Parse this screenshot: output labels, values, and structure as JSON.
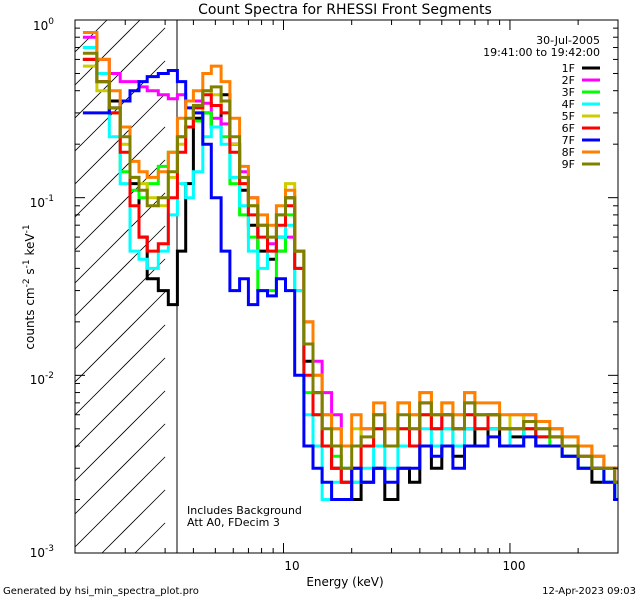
{
  "chart_data": {
    "type": "line",
    "title": "Count Spectra for RHESSI Front Segments",
    "xlabel": "Energy (keV)",
    "ylabel_main": "counts cm",
    "ylabel_exp1": "-2",
    "ylabel_mid": " s",
    "ylabel_exp2": "-1",
    "ylabel_end": " keV",
    "ylabel_exp3": "-1",
    "x_scale": "log",
    "y_scale": "log",
    "xlim": [
      1.2,
      300
    ],
    "ylim": [
      0.001,
      1.0
    ],
    "x_tick_labels": [
      {
        "value": 10,
        "label": "10"
      },
      {
        "value": 100,
        "label": "100"
      }
    ],
    "y_tick_labels": [
      {
        "value": 1,
        "base": "10",
        "exp": "0"
      },
      {
        "value": 0.1,
        "base": "10",
        "exp": "-1"
      },
      {
        "value": 0.01,
        "base": "10",
        "exp": "-2"
      },
      {
        "value": 0.001,
        "base": "10",
        "exp": "-3"
      }
    ],
    "excluded_region": {
      "from": 1.2,
      "to": 3.0,
      "style": "hatched"
    },
    "date": "30-Jul-2005",
    "time_range": "19:41:00 to 19:42:00",
    "annotations": [
      "Includes Background",
      "Att A0, FDecim 3"
    ],
    "series": [
      {
        "name": "1F",
        "color": "#000000",
        "x": [
          1.3,
          1.5,
          1.7,
          1.9,
          2.1,
          2.3,
          2.5,
          2.8,
          3.1,
          3.4,
          3.7,
          4.0,
          4.4,
          4.8,
          5.3,
          5.8,
          6.4,
          7.0,
          7.7,
          8.5,
          9.3,
          10.2,
          11.2,
          12.3,
          13.5,
          14.8,
          16.3,
          18,
          20,
          22,
          25,
          28,
          32,
          36,
          40,
          45,
          50,
          56,
          63,
          70,
          80,
          90,
          100,
          115,
          130,
          150,
          170,
          200,
          230,
          260,
          290
        ],
        "y": [
          0.6,
          0.45,
          0.35,
          0.25,
          0.12,
          0.06,
          0.035,
          0.03,
          0.025,
          0.05,
          0.12,
          0.28,
          0.3,
          0.25,
          0.38,
          0.2,
          0.11,
          0.07,
          0.05,
          0.045,
          0.06,
          0.1,
          0.05,
          0.012,
          0.008,
          0.004,
          0.003,
          0.0025,
          0.002,
          0.0025,
          0.003,
          0.002,
          0.003,
          0.0025,
          0.004,
          0.003,
          0.004,
          0.0035,
          0.005,
          0.004,
          0.005,
          0.004,
          0.0045,
          0.005,
          0.004,
          0.004,
          0.0035,
          0.003,
          0.0025,
          0.0025,
          0.002
        ]
      },
      {
        "name": "2F",
        "color": "#ff00ff",
        "x": [
          1.3,
          1.5,
          1.7,
          1.9,
          2.1,
          2.3,
          2.5,
          2.8,
          3.1,
          3.4,
          3.7,
          4.0,
          4.4,
          4.8,
          5.3,
          5.8,
          6.4,
          7.0,
          7.7,
          8.5,
          9.3,
          10.2,
          11.2,
          12.3,
          13.5,
          14.8,
          16.3,
          18,
          20,
          22,
          25,
          28,
          32,
          36,
          40,
          45,
          50,
          56,
          63,
          70,
          80,
          90,
          100,
          115,
          130,
          150,
          170,
          200,
          230,
          260,
          290
        ],
        "y": [
          0.8,
          0.6,
          0.5,
          0.45,
          0.45,
          0.42,
          0.4,
          0.38,
          0.36,
          0.38,
          0.35,
          0.35,
          0.34,
          0.28,
          0.26,
          0.2,
          0.14,
          0.1,
          0.07,
          0.055,
          0.05,
          0.06,
          0.04,
          0.02,
          0.012,
          0.008,
          0.006,
          0.004,
          0.004,
          0.005,
          0.006,
          0.004,
          0.004,
          0.005,
          0.007,
          0.005,
          0.006,
          0.005,
          0.007,
          0.006,
          0.006,
          0.005,
          0.005,
          0.006,
          0.005,
          0.005,
          0.004,
          0.004,
          0.0035,
          0.003,
          0.003
        ]
      },
      {
        "name": "3F",
        "color": "#00ff00",
        "x": [
          1.3,
          1.5,
          1.7,
          1.9,
          2.1,
          2.3,
          2.5,
          2.8,
          3.1,
          3.4,
          3.7,
          4.0,
          4.4,
          4.8,
          5.3,
          5.8,
          6.4,
          7.0,
          7.7,
          8.5,
          9.3,
          10.2,
          11.2,
          12.3,
          13.5,
          14.8,
          16.3,
          18,
          20,
          22,
          25,
          28,
          32,
          36,
          40,
          45,
          50,
          56,
          63,
          70,
          80,
          90,
          100,
          115,
          130,
          150,
          170,
          200,
          230,
          260,
          290
        ],
        "y": [
          0.7,
          0.5,
          0.3,
          0.14,
          0.11,
          0.1,
          0.12,
          0.15,
          0.18,
          0.22,
          0.25,
          0.27,
          0.3,
          0.25,
          0.22,
          0.12,
          0.08,
          0.06,
          0.03,
          0.03,
          0.05,
          0.08,
          0.03,
          0.008,
          0.006,
          0.004,
          0.0035,
          0.003,
          0.0025,
          0.004,
          0.005,
          0.004,
          0.005,
          0.004,
          0.006,
          0.005,
          0.005,
          0.004,
          0.006,
          0.005,
          0.006,
          0.005,
          0.004,
          0.005,
          0.0045,
          0.004,
          0.0035,
          0.003,
          0.003,
          0.0025,
          0.002
        ]
      },
      {
        "name": "4F",
        "color": "#00ffff",
        "x": [
          1.3,
          1.5,
          1.7,
          1.9,
          2.1,
          2.3,
          2.5,
          2.8,
          3.1,
          3.4,
          3.7,
          4.0,
          4.4,
          4.8,
          5.3,
          5.8,
          6.4,
          7.0,
          7.7,
          8.5,
          9.3,
          10.2,
          11.2,
          12.3,
          13.5,
          14.8,
          16.3,
          18,
          20,
          22,
          25,
          28,
          32,
          36,
          40,
          45,
          50,
          56,
          63,
          70,
          80,
          90,
          100,
          115,
          130,
          150,
          170,
          200,
          230,
          260,
          290
        ],
        "y": [
          0.7,
          0.5,
          0.22,
          0.12,
          0.05,
          0.045,
          0.04,
          0.05,
          0.08,
          0.12,
          0.1,
          0.14,
          0.22,
          0.25,
          0.2,
          0.13,
          0.09,
          0.05,
          0.04,
          0.05,
          0.06,
          0.07,
          0.03,
          0.006,
          0.004,
          0.002,
          0.0025,
          0.003,
          0.0025,
          0.003,
          0.004,
          0.003,
          0.004,
          0.004,
          0.005,
          0.004,
          0.005,
          0.004,
          0.005,
          0.006,
          0.005,
          0.005,
          0.004,
          0.005,
          0.0045,
          0.0045,
          0.004,
          0.0035,
          0.003,
          0.0025,
          0.002
        ]
      },
      {
        "name": "5F",
        "color": "#cccc00",
        "x": [
          1.3,
          1.5,
          1.7,
          1.9,
          2.1,
          2.3,
          2.5,
          2.8,
          3.1,
          3.4,
          3.7,
          4.0,
          4.4,
          4.8,
          5.3,
          5.8,
          6.4,
          7.0,
          7.7,
          8.5,
          9.3,
          10.2,
          11.2,
          12.3,
          13.5,
          14.8,
          16.3,
          18,
          20,
          22,
          25,
          28,
          32,
          36,
          40,
          45,
          50,
          56,
          63,
          70,
          80,
          90,
          100,
          115,
          130,
          150,
          170,
          200,
          230,
          260,
          290
        ],
        "y": [
          0.55,
          0.4,
          0.3,
          0.2,
          0.13,
          0.12,
          0.1,
          0.09,
          0.13,
          0.2,
          0.25,
          0.3,
          0.4,
          0.38,
          0.3,
          0.2,
          0.12,
          0.09,
          0.07,
          0.06,
          0.08,
          0.12,
          0.05,
          0.02,
          0.01,
          0.006,
          0.005,
          0.004,
          0.005,
          0.004,
          0.006,
          0.005,
          0.007,
          0.006,
          0.008,
          0.006,
          0.007,
          0.006,
          0.008,
          0.006,
          0.006,
          0.005,
          0.006,
          0.005,
          0.005,
          0.005,
          0.0045,
          0.004,
          0.0035,
          0.003,
          0.003
        ]
      },
      {
        "name": "6F",
        "color": "#ff0000",
        "x": [
          1.3,
          1.5,
          1.7,
          1.9,
          2.1,
          2.3,
          2.5,
          2.8,
          3.1,
          3.4,
          3.7,
          4.0,
          4.4,
          4.8,
          5.3,
          5.8,
          6.4,
          7.0,
          7.7,
          8.5,
          9.3,
          10.2,
          11.2,
          12.3,
          13.5,
          14.8,
          16.3,
          18,
          20,
          22,
          25,
          28,
          32,
          36,
          40,
          45,
          50,
          56,
          63,
          70,
          80,
          90,
          100,
          115,
          130,
          150,
          170,
          200,
          230,
          260,
          290
        ],
        "y": [
          0.6,
          0.45,
          0.3,
          0.18,
          0.09,
          0.06,
          0.05,
          0.055,
          0.1,
          0.18,
          0.25,
          0.32,
          0.38,
          0.33,
          0.3,
          0.18,
          0.12,
          0.08,
          0.06,
          0.05,
          0.07,
          0.09,
          0.04,
          0.01,
          0.006,
          0.004,
          0.003,
          0.0025,
          0.003,
          0.004,
          0.005,
          0.004,
          0.005,
          0.004,
          0.006,
          0.005,
          0.006,
          0.005,
          0.006,
          0.005,
          0.006,
          0.005,
          0.005,
          0.005,
          0.0045,
          0.0045,
          0.004,
          0.0035,
          0.003,
          0.003,
          0.0025
        ]
      },
      {
        "name": "7F",
        "color": "#0000ff",
        "x": [
          1.3,
          1.5,
          1.7,
          1.9,
          2.1,
          2.3,
          2.5,
          2.8,
          3.1,
          3.4,
          3.7,
          4.0,
          4.4,
          4.8,
          5.3,
          5.8,
          6.4,
          7.0,
          7.7,
          8.5,
          9.3,
          10.2,
          11.2,
          12.3,
          13.5,
          14.8,
          16.3,
          18,
          20,
          22,
          25,
          28,
          32,
          36,
          40,
          45,
          50,
          56,
          63,
          70,
          80,
          90,
          100,
          115,
          130,
          150,
          170,
          200,
          230,
          260,
          290
        ],
        "y": [
          0.3,
          0.3,
          0.32,
          0.35,
          0.4,
          0.45,
          0.48,
          0.5,
          0.52,
          0.45,
          0.32,
          0.3,
          0.2,
          0.1,
          0.05,
          0.03,
          0.035,
          0.025,
          0.03,
          0.028,
          0.035,
          0.03,
          0.01,
          0.004,
          0.003,
          0.0025,
          0.002,
          0.002,
          0.003,
          0.0025,
          0.003,
          0.0025,
          0.003,
          0.003,
          0.004,
          0.0035,
          0.004,
          0.003,
          0.004,
          0.004,
          0.0045,
          0.004,
          0.004,
          0.0045,
          0.004,
          0.004,
          0.0035,
          0.003,
          0.003,
          0.0025,
          0.002
        ]
      },
      {
        "name": "8F",
        "color": "#ff8000",
        "x": [
          1.3,
          1.5,
          1.7,
          1.9,
          2.1,
          2.3,
          2.5,
          2.8,
          3.1,
          3.4,
          3.7,
          4.0,
          4.4,
          4.8,
          5.3,
          5.8,
          6.4,
          7.0,
          7.7,
          8.5,
          9.3,
          10.2,
          11.2,
          12.3,
          13.5,
          14.8,
          16.3,
          18,
          20,
          22,
          25,
          28,
          32,
          36,
          40,
          45,
          50,
          56,
          63,
          70,
          80,
          90,
          100,
          115,
          130,
          150,
          170,
          200,
          230,
          260,
          290
        ],
        "y": [
          0.85,
          0.6,
          0.4,
          0.25,
          0.16,
          0.14,
          0.13,
          0.14,
          0.18,
          0.28,
          0.35,
          0.4,
          0.5,
          0.55,
          0.45,
          0.28,
          0.15,
          0.1,
          0.08,
          0.07,
          0.09,
          0.11,
          0.05,
          0.02,
          0.01,
          0.006,
          0.005,
          0.004,
          0.006,
          0.005,
          0.007,
          0.005,
          0.007,
          0.006,
          0.008,
          0.006,
          0.007,
          0.006,
          0.008,
          0.007,
          0.007,
          0.006,
          0.006,
          0.006,
          0.0055,
          0.005,
          0.0045,
          0.004,
          0.0035,
          0.003,
          0.003
        ]
      },
      {
        "name": "9F",
        "color": "#808000",
        "x": [
          1.3,
          1.5,
          1.7,
          1.9,
          2.1,
          2.3,
          2.5,
          2.8,
          3.1,
          3.4,
          3.7,
          4.0,
          4.4,
          4.8,
          5.3,
          5.8,
          6.4,
          7.0,
          7.7,
          8.5,
          9.3,
          10.2,
          11.2,
          12.3,
          13.5,
          14.8,
          16.3,
          18,
          20,
          22,
          25,
          28,
          32,
          36,
          40,
          45,
          50,
          56,
          63,
          70,
          80,
          90,
          100,
          115,
          130,
          150,
          170,
          200,
          230,
          260,
          290
        ],
        "y": [
          0.65,
          0.45,
          0.32,
          0.22,
          0.13,
          0.11,
          0.09,
          0.1,
          0.14,
          0.22,
          0.28,
          0.33,
          0.4,
          0.42,
          0.35,
          0.22,
          0.13,
          0.09,
          0.07,
          0.06,
          0.08,
          0.1,
          0.05,
          0.015,
          0.008,
          0.005,
          0.004,
          0.003,
          0.004,
          0.0045,
          0.006,
          0.004,
          0.006,
          0.005,
          0.007,
          0.006,
          0.006,
          0.005,
          0.007,
          0.006,
          0.006,
          0.005,
          0.005,
          0.0055,
          0.005,
          0.0045,
          0.004,
          0.0035,
          0.003,
          0.003,
          0.0025
        ]
      }
    ]
  },
  "footer": {
    "generated_by": "Generated by hsi_min_spectra_plot.pro",
    "timestamp": "12-Apr-2023 09:03"
  }
}
